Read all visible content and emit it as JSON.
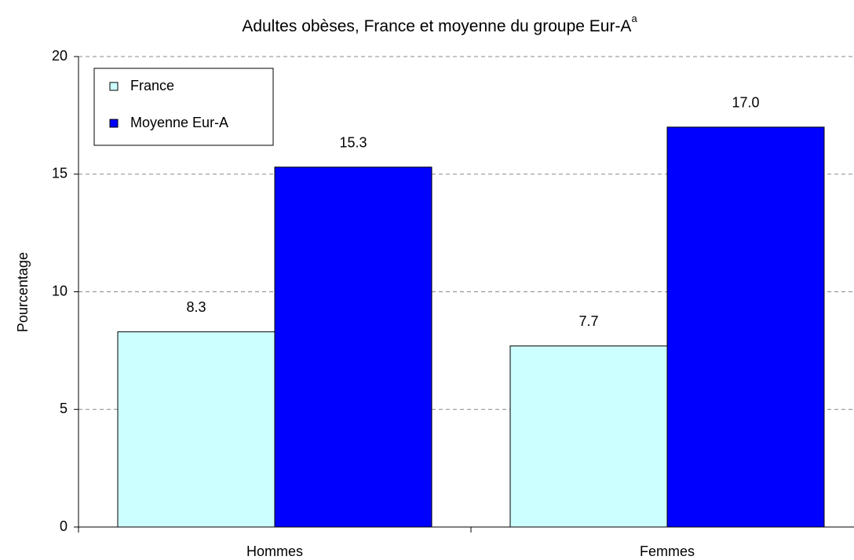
{
  "chart_data": {
    "type": "bar",
    "title": "Adultes obèses, France et moyenne du groupe Eur-A",
    "title_note": "a",
    "y_label": "Pourcentage",
    "categories": [
      "Hommes",
      "Femmes"
    ],
    "series": [
      {
        "name": "France",
        "color": "#ccffff",
        "values": [
          8.3,
          7.7
        ],
        "value_labels": [
          "8.3",
          "7.7"
        ]
      },
      {
        "name": "Moyenne Eur-A",
        "color": "#0000ff",
        "values": [
          15.3,
          17.0
        ],
        "value_labels": [
          "15.3",
          "17.0"
        ]
      }
    ],
    "ylim": [
      0,
      20
    ],
    "yticks": [
      0,
      5,
      10,
      15,
      20
    ],
    "grid": true,
    "legend": "top-left"
  }
}
